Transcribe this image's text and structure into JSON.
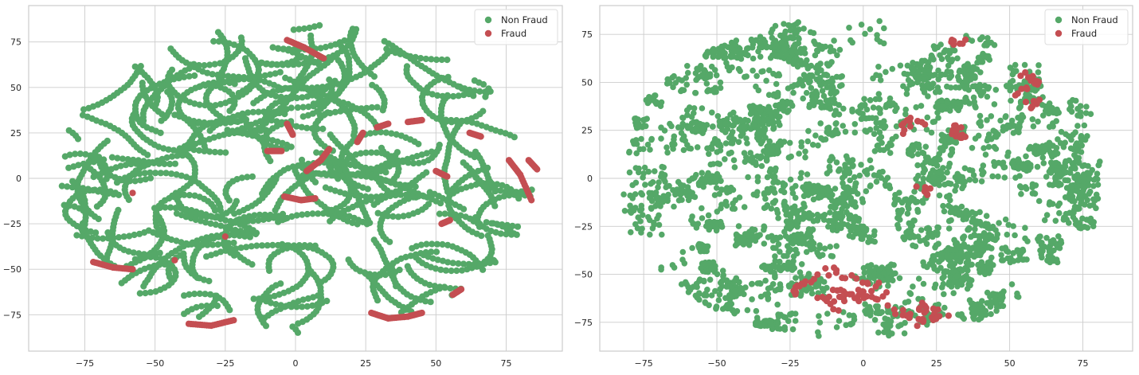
{
  "chart_data": [
    {
      "type": "scatter",
      "title": "",
      "xlabel": "",
      "ylabel": "",
      "xlim": [
        -95,
        95
      ],
      "ylim": [
        -95,
        95
      ],
      "xticks": [
        -75,
        -50,
        -25,
        0,
        25,
        50,
        75
      ],
      "yticks": [
        75,
        50,
        25,
        0,
        -25,
        -50,
        -75
      ],
      "xtick_labels": [
        "−75",
        "−50",
        "−25",
        "0",
        "25",
        "50",
        "75"
      ],
      "ytick_labels": [
        "75",
        "50",
        "25",
        "0",
        "−25",
        "−50",
        "−75"
      ],
      "grid": true,
      "legend_position": "top-right",
      "series": [
        {
          "name": "Non Fraud",
          "color": "#55a868"
        },
        {
          "name": "Fraud",
          "color": "#c44e52"
        }
      ],
      "fraud_clusters": [
        [
          [
            -72,
            -46
          ],
          [
            -65,
            -49
          ],
          [
            -58,
            -50
          ]
        ],
        [
          [
            -38,
            -80
          ],
          [
            -30,
            -81
          ],
          [
            -22,
            -78
          ]
        ],
        [
          [
            -3,
            76
          ],
          [
            3,
            72
          ],
          [
            10,
            66
          ]
        ],
        [
          [
            -10,
            15
          ],
          [
            -5,
            15
          ]
        ],
        [
          [
            -3,
            30
          ],
          [
            -1,
            24
          ]
        ],
        [
          [
            4,
            4
          ],
          [
            9,
            10
          ],
          [
            12,
            16
          ]
        ],
        [
          [
            -4,
            -10
          ],
          [
            2,
            -12
          ],
          [
            7,
            -11
          ]
        ],
        [
          [
            22,
            20
          ],
          [
            24,
            25
          ]
        ],
        [
          [
            29,
            28
          ],
          [
            33,
            30
          ]
        ],
        [
          [
            40,
            31
          ],
          [
            45,
            32
          ]
        ],
        [
          [
            27,
            -74
          ],
          [
            33,
            -77
          ],
          [
            40,
            -76
          ],
          [
            45,
            -74
          ]
        ],
        [
          [
            50,
            4
          ],
          [
            54,
            1
          ]
        ],
        [
          [
            62,
            25
          ],
          [
            66,
            23
          ]
        ],
        [
          [
            76,
            10
          ],
          [
            80,
            2
          ],
          [
            84,
            -12
          ]
        ],
        [
          [
            83,
            10
          ],
          [
            86,
            5
          ]
        ],
        [
          [
            56,
            -64
          ],
          [
            59,
            -61
          ]
        ],
        [
          [
            52,
            -25
          ],
          [
            55,
            -23
          ]
        ],
        [
          [
            -58,
            -8
          ]
        ],
        [
          [
            -43,
            -45
          ]
        ],
        [
          [
            -25,
            -32
          ]
        ]
      ]
    },
    {
      "type": "scatter",
      "title": "",
      "xlabel": "",
      "ylabel": "",
      "xlim": [
        -90,
        92
      ],
      "ylim": [
        -90,
        90
      ],
      "xticks": [
        -75,
        -50,
        -25,
        0,
        25,
        50,
        75
      ],
      "yticks": [
        75,
        50,
        25,
        0,
        -25,
        -50,
        -75
      ],
      "xtick_labels": [
        "−75",
        "−50",
        "−25",
        "0",
        "25",
        "50",
        "75"
      ],
      "ytick_labels": [
        "75",
        "50",
        "25",
        "0",
        "−25",
        "−50",
        "−75"
      ],
      "grid": true,
      "legend_position": "top-right",
      "series": [
        {
          "name": "Non Fraud",
          "color": "#55a868"
        },
        {
          "name": "Fraud",
          "color": "#c44e52"
        }
      ],
      "fraud_clusters": [
        [
          [
            -10,
            -58
          ],
          [
            -5,
            -62
          ],
          [
            0,
            -60
          ],
          [
            5,
            -63
          ],
          [
            -15,
            -62
          ],
          [
            -8,
            -68
          ]
        ],
        [
          [
            10,
            -68
          ],
          [
            15,
            -72
          ],
          [
            20,
            -66
          ],
          [
            25,
            -70
          ],
          [
            18,
            -75
          ],
          [
            28,
            -73
          ]
        ],
        [
          [
            -20,
            -55
          ],
          [
            -25,
            -60
          ],
          [
            -12,
            -48
          ],
          [
            -3,
            -52
          ],
          [
            8,
            -58
          ]
        ],
        [
          [
            30,
            25
          ],
          [
            35,
            22
          ],
          [
            32,
            28
          ]
        ],
        [
          [
            12,
            25
          ],
          [
            15,
            30
          ],
          [
            20,
            28
          ]
        ],
        [
          [
            55,
            55
          ],
          [
            60,
            50
          ],
          [
            52,
            45
          ]
        ],
        [
          [
            62,
            40
          ],
          [
            57,
            38
          ]
        ],
        [
          [
            20,
            -5
          ],
          [
            22,
            -8
          ]
        ],
        [
          [
            30,
            70
          ],
          [
            35,
            72
          ]
        ]
      ]
    }
  ]
}
